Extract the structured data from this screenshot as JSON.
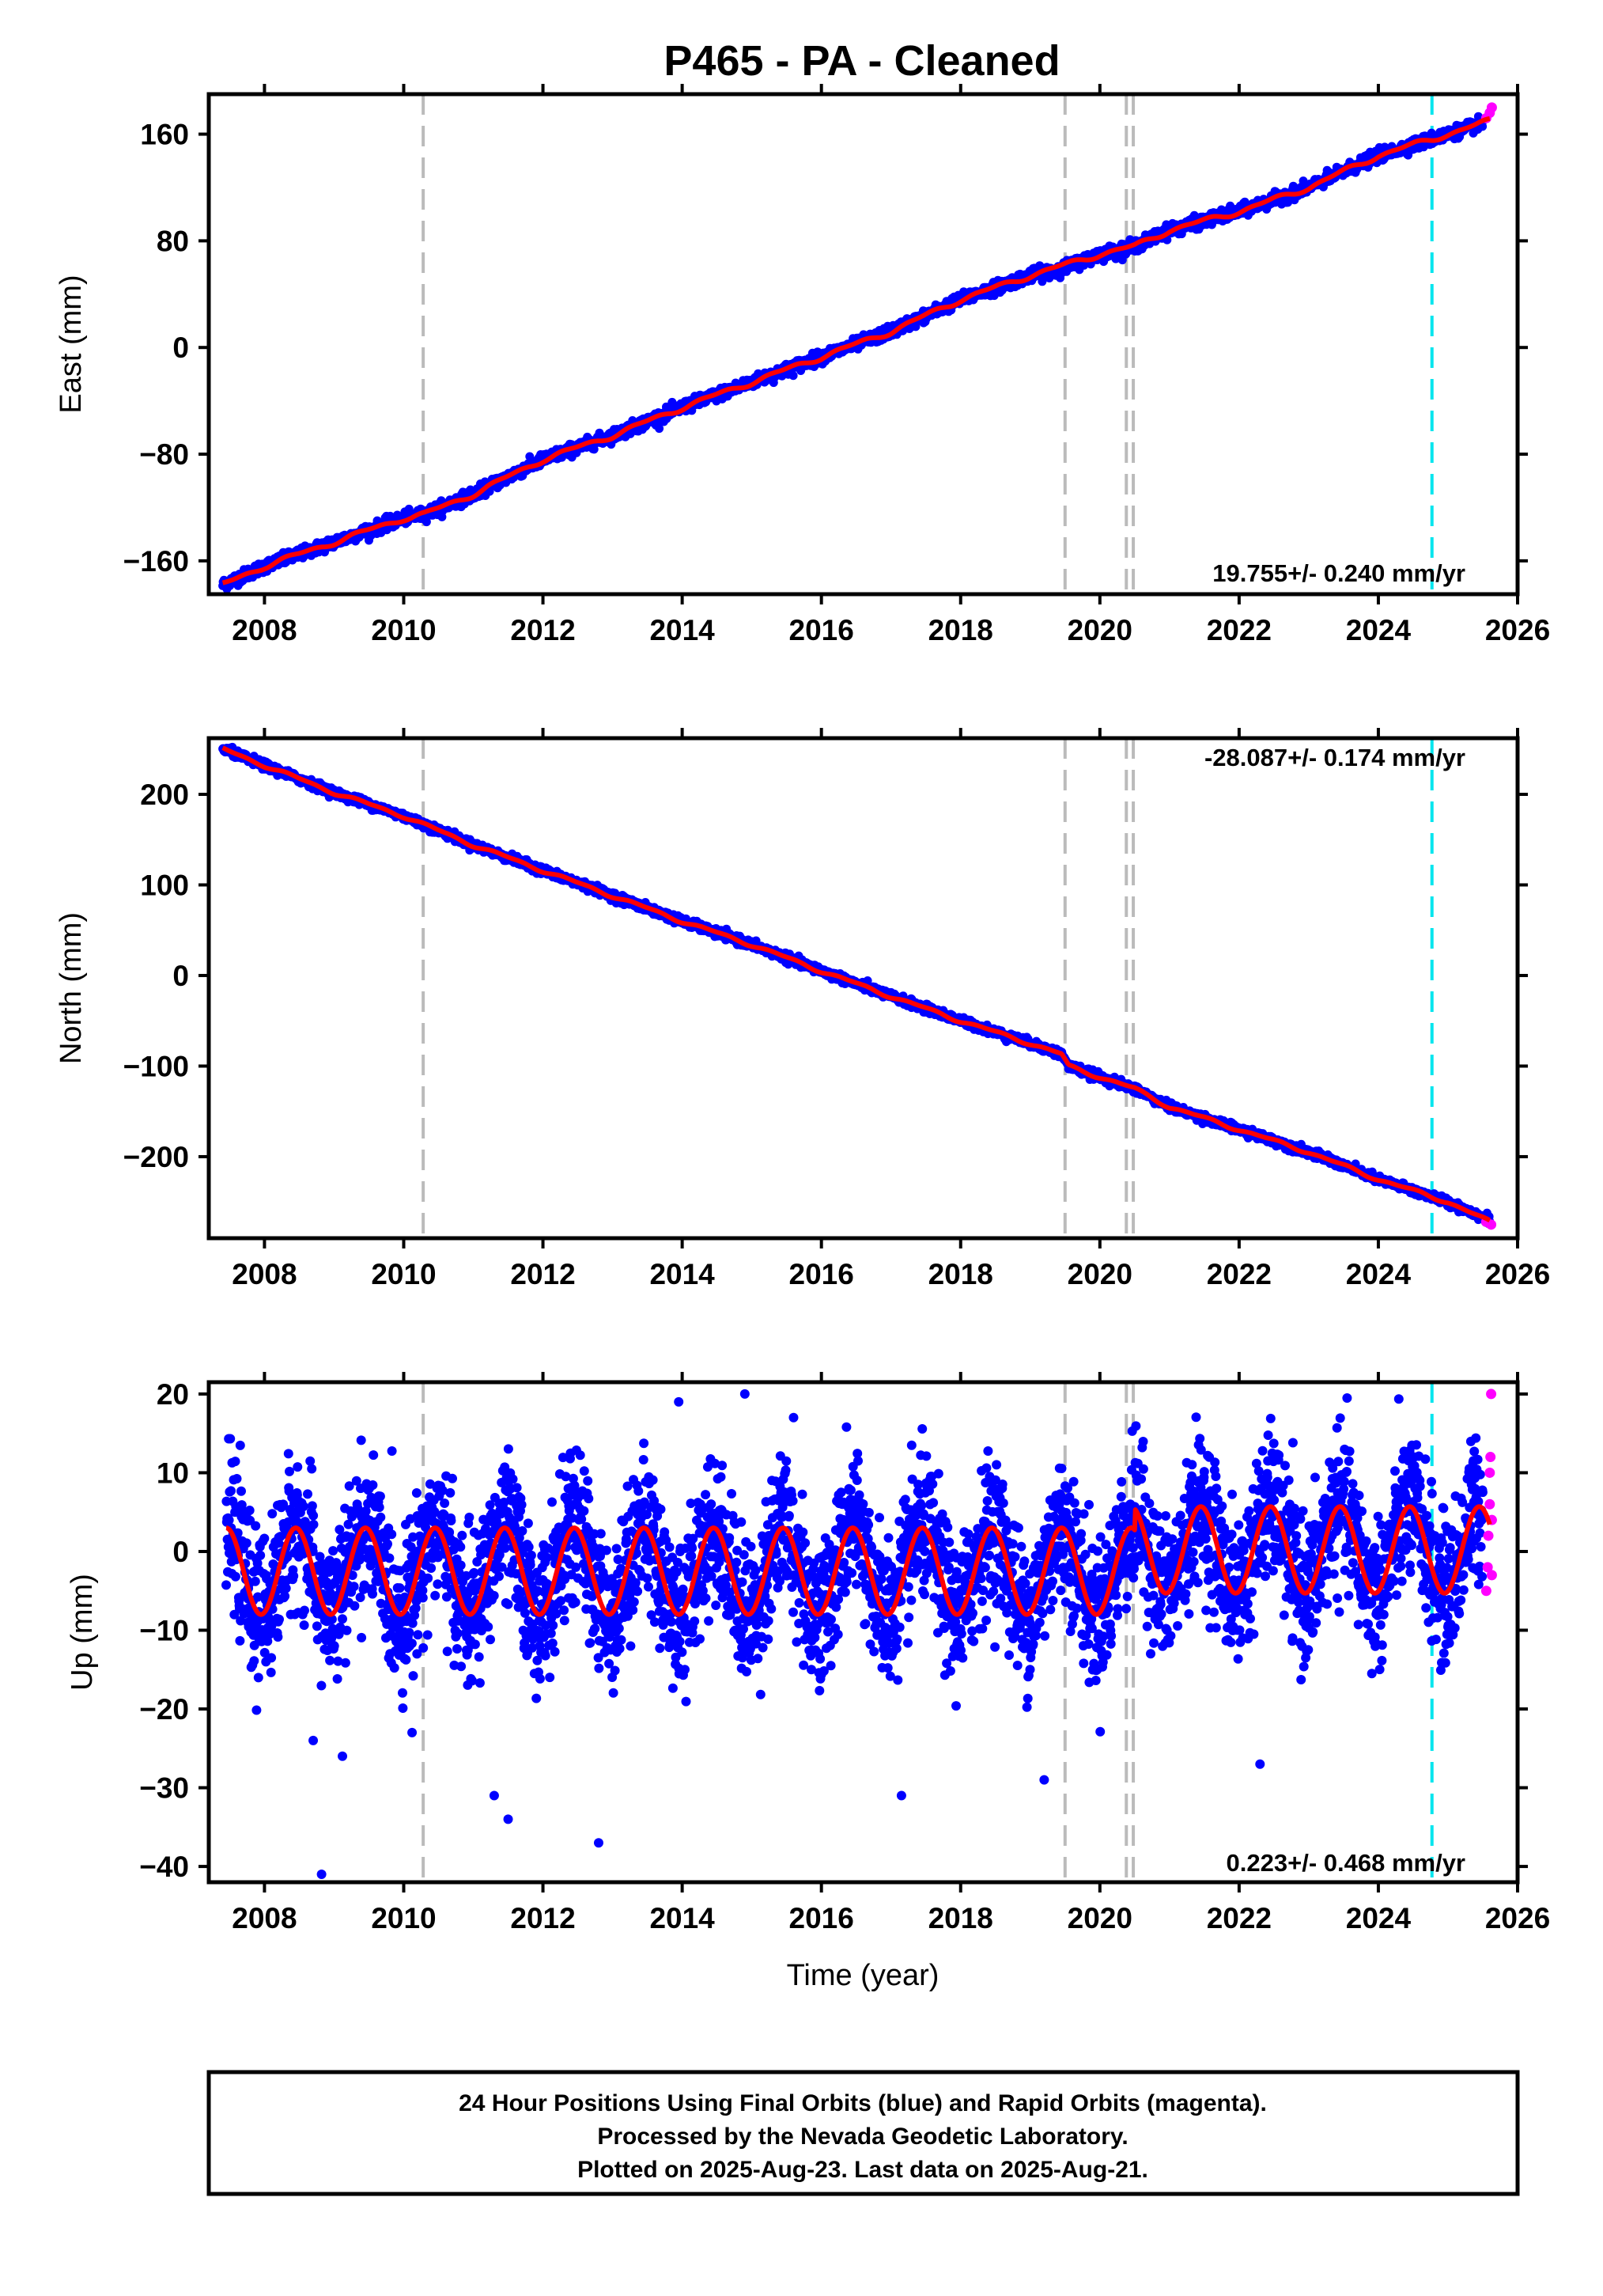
{
  "title": "P465  - PA - Cleaned",
  "chart_data": [
    {
      "type": "scatter",
      "panel": "east",
      "ylabel": "East (mm)",
      "xlabel": "",
      "xlim": [
        2007.2,
        2026.0
      ],
      "ylim": [
        -185,
        190
      ],
      "x_ticks": [
        "2008",
        "2010",
        "2012",
        "2014",
        "2016",
        "2018",
        "2020",
        "2022",
        "2024",
        "2026"
      ],
      "y_ticks": [
        "160",
        "80",
        "0",
        "−80",
        "−160"
      ],
      "y_tick_values": [
        160,
        80,
        0,
        -80,
        -160
      ],
      "rate_label": "19.755+/- 0.240 mm/yr",
      "rate_position": "bottom-right",
      "grid": false,
      "series": [
        {
          "name": "Final Orbits (blue)",
          "color": "#0000ff",
          "x": [
            2007.4,
            2008.0,
            2009.0,
            2010.0,
            2010.3,
            2011.0,
            2012.0,
            2013.0,
            2014.0,
            2015.0,
            2016.0,
            2017.0,
            2018.0,
            2019.0,
            2019.5,
            2020.0,
            2020.5,
            2021.0,
            2022.0,
            2023.0,
            2024.0,
            2025.0,
            2025.5
          ],
          "y": [
            -178,
            -164,
            -146,
            -128,
            -125,
            -110,
            -84,
            -66,
            -45,
            -26,
            -7,
            12,
            36,
            54,
            60,
            70,
            76,
            88,
            102,
            120,
            144,
            160,
            168
          ]
        },
        {
          "name": "Rapid Orbits (magenta)",
          "color": "#ff00ff",
          "x": [
            2025.55,
            2025.6,
            2025.63
          ],
          "y": [
            172,
            176,
            180
          ]
        },
        {
          "name": "",
          "color": "#ff0000",
          "type": "line",
          "role": "model",
          "x": [
            2007.4,
            2008.0,
            2009.0,
            2010.0,
            2010.3,
            2011.0,
            2012.0,
            2013.0,
            2014.0,
            2015.0,
            2016.0,
            2017.0,
            2018.0,
            2019.0,
            2019.5,
            2020.0,
            2020.5,
            2021.0,
            2022.0,
            2023.0,
            2024.0,
            2025.0,
            2025.6
          ],
          "y": [
            -178,
            -164,
            -146,
            -128,
            -125,
            -110,
            -84,
            -66,
            -45,
            -26,
            -7,
            12,
            36,
            54,
            62,
            70,
            76,
            88,
            102,
            120,
            144,
            160,
            170
          ]
        }
      ],
      "vertical_lines": [
        {
          "x": 2010.28,
          "color": "#bbbbbb",
          "style": "dashed"
        },
        {
          "x": 2019.5,
          "color": "#bbbbbb",
          "style": "dashed"
        },
        {
          "x": 2020.38,
          "color": "#bbbbbb",
          "style": "dashed"
        },
        {
          "x": 2020.48,
          "color": "#bbbbbb",
          "style": "dashed"
        },
        {
          "x": 2024.77,
          "color": "#00e5ee",
          "style": "dashed"
        }
      ]
    },
    {
      "type": "scatter",
      "panel": "north",
      "ylabel": "North (mm)",
      "xlabel": "",
      "xlim": [
        2007.2,
        2026.0
      ],
      "ylim": [
        -290,
        262
      ],
      "x_ticks": [
        "2008",
        "2010",
        "2012",
        "2014",
        "2016",
        "2018",
        "2020",
        "2022",
        "2024",
        "2026"
      ],
      "y_ticks": [
        "200",
        "100",
        "0",
        "−100",
        "−200"
      ],
      "y_tick_values": [
        200,
        100,
        0,
        -100,
        -200
      ],
      "rate_label": "-28.087+/- 0.174 mm/yr",
      "rate_position": "top-right",
      "grid": false,
      "series": [
        {
          "name": "Final Orbits (blue)",
          "color": "#0000ff",
          "x": [
            2007.4,
            2008.0,
            2009.0,
            2010.0,
            2011.0,
            2012.0,
            2013.0,
            2014.0,
            2015.0,
            2016.0,
            2017.0,
            2018.0,
            2019.0,
            2019.45,
            2019.55,
            2020.0,
            2020.5,
            2021.0,
            2022.0,
            2023.0,
            2024.0,
            2025.0,
            2025.6
          ],
          "y": [
            250,
            232,
            202,
            176,
            144,
            116,
            88,
            60,
            34,
            5,
            -23,
            -50,
            -75,
            -87,
            -100,
            -112,
            -125,
            -145,
            -170,
            -195,
            -225,
            -250,
            -270
          ]
        },
        {
          "name": "Rapid Orbits (magenta)",
          "color": "#ff00ff",
          "x": [
            2025.55,
            2025.62
          ],
          "y": [
            -272,
            -275
          ]
        },
        {
          "name": "",
          "color": "#ff0000",
          "type": "line",
          "role": "model",
          "x": [
            2007.4,
            2008.0,
            2009.0,
            2010.0,
            2011.0,
            2012.0,
            2013.0,
            2014.0,
            2015.0,
            2016.0,
            2017.0,
            2018.0,
            2019.0,
            2019.45,
            2019.55,
            2020.0,
            2020.5,
            2021.0,
            2022.0,
            2023.0,
            2024.0,
            2025.0,
            2025.6
          ],
          "y": [
            250,
            232,
            202,
            176,
            144,
            116,
            88,
            60,
            34,
            5,
            -23,
            -50,
            -75,
            -87,
            -100,
            -112,
            -125,
            -145,
            -170,
            -195,
            -225,
            -250,
            -272
          ]
        }
      ],
      "vertical_lines": [
        {
          "x": 2010.28,
          "color": "#bbbbbb",
          "style": "dashed"
        },
        {
          "x": 2019.5,
          "color": "#bbbbbb",
          "style": "dashed"
        },
        {
          "x": 2020.38,
          "color": "#bbbbbb",
          "style": "dashed"
        },
        {
          "x": 2020.48,
          "color": "#bbbbbb",
          "style": "dashed"
        },
        {
          "x": 2024.77,
          "color": "#00e5ee",
          "style": "dashed"
        }
      ]
    },
    {
      "type": "scatter",
      "panel": "up",
      "ylabel": "Up (mm)",
      "xlabel": "Time (year)",
      "xlim": [
        2007.2,
        2026.0
      ],
      "ylim": [
        -42,
        21.5
      ],
      "x_ticks": [
        "2008",
        "2010",
        "2012",
        "2014",
        "2016",
        "2018",
        "2020",
        "2022",
        "2024",
        "2026"
      ],
      "y_ticks": [
        "20",
        "10",
        "0",
        "−10",
        "−20",
        "−30",
        "−40"
      ],
      "y_tick_values": [
        20,
        10,
        0,
        -10,
        -20,
        -30,
        -40
      ],
      "rate_label": "0.223+/- 0.468 mm/yr",
      "rate_position": "bottom-right",
      "grid": false,
      "annual_amplitude_mm": 5.5,
      "scatter_std_mm": 4.5,
      "offset_after_2020_5_mm": 2.7,
      "series": [
        {
          "name": "Final Orbits (blue)",
          "color": "#0000ff",
          "x": [
            2007.45,
            2007.7,
            2008.25,
            2008.75,
            2009.25,
            2009.75,
            2010.25,
            2010.75,
            2011.25,
            2011.75,
            2012.25,
            2012.75,
            2013.25,
            2013.75,
            2014.25,
            2014.75,
            2015.25,
            2015.75,
            2016.25,
            2016.75,
            2017.25,
            2017.75,
            2018.25,
            2018.75,
            2019.25,
            2019.75,
            2020.25,
            2020.75,
            2021.25,
            2021.75,
            2022.25,
            2022.75,
            2023.25,
            2023.75,
            2024.25,
            2024.75,
            2025.25,
            2025.5
          ],
          "y": [
            -3,
            2,
            -9,
            2,
            -9,
            2,
            -9,
            2,
            -9,
            3,
            -8,
            3,
            -8,
            3,
            -8,
            3,
            -8,
            3,
            -8,
            3,
            -7,
            3,
            -7,
            3,
            -7,
            3,
            -7,
            8,
            -3,
            8,
            -3,
            8,
            -3,
            8,
            -3,
            8,
            -8,
            2
          ]
        },
        {
          "name": "Rapid Orbits (magenta)",
          "color": "#ff00ff",
          "x": [
            2025.55,
            2025.57,
            2025.58,
            2025.6,
            2025.6,
            2025.61,
            2025.62,
            2025.63,
            2025.63
          ],
          "y": [
            -5,
            -2,
            2,
            6,
            10,
            12,
            20,
            -3,
            4
          ]
        },
        {
          "name": "",
          "color": "#ff0000",
          "type": "line",
          "role": "model",
          "x": [
            2007.45,
            2025.6
          ],
          "y": [
            -3,
            2
          ]
        }
      ],
      "outliers": {
        "x": [
          2008.82,
          2009.12,
          2010.12,
          2011.3,
          2011.5,
          2012.8,
          2013.95,
          2017.15,
          2019.2,
          2022.3,
          2008.7,
          2014.9,
          2015.6
        ],
        "y": [
          -41,
          -26,
          -23,
          -31,
          -34,
          -37,
          19,
          -31,
          -29,
          -27,
          -24,
          20,
          17
        ]
      },
      "vertical_lines": [
        {
          "x": 2010.28,
          "color": "#bbbbbb",
          "style": "dashed"
        },
        {
          "x": 2019.5,
          "color": "#bbbbbb",
          "style": "dashed"
        },
        {
          "x": 2020.38,
          "color": "#bbbbbb",
          "style": "dashed"
        },
        {
          "x": 2020.48,
          "color": "#bbbbbb",
          "style": "dashed"
        },
        {
          "x": 2024.77,
          "color": "#00e5ee",
          "style": "dashed"
        }
      ]
    }
  ],
  "footer": {
    "line1": "24 Hour Positions Using Final Orbits (blue) and Rapid Orbits (magenta).",
    "line2": "Processed by the Nevada Geodetic Laboratory.",
    "line3": "Plotted on 2025-Aug-23. Last data on 2025-Aug-21."
  }
}
